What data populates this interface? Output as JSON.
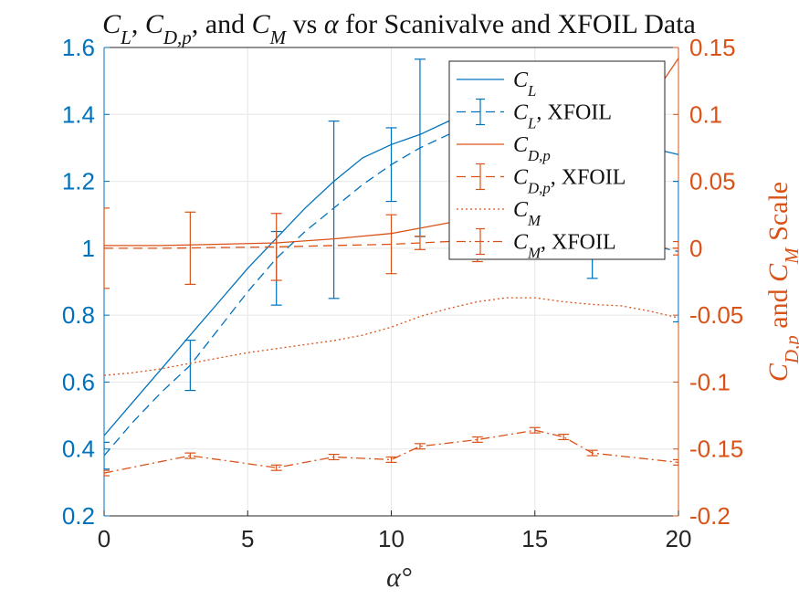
{
  "chart_data": {
    "type": "line",
    "title": "C_L, C_D,p, and C_M vs α for Scanivalve and XFOIL Data",
    "xlabel": "α°",
    "ylabel_left": "",
    "ylabel_right": "C_D,p and C_M Scale",
    "xlim": [
      0,
      20
    ],
    "ylim_left": [
      0.2,
      1.6
    ],
    "ylim_right": [
      -0.2,
      0.15
    ],
    "xticks": [
      "0",
      "5",
      "10",
      "15",
      "20"
    ],
    "yticks_left": [
      "0.2",
      "0.4",
      "0.6",
      "0.8",
      "1",
      "1.2",
      "1.4",
      "1.6"
    ],
    "yticks_right": [
      "-0.2",
      "-0.15",
      "-0.1",
      "-0.05",
      "0",
      "0.05",
      "0.1",
      "0.15"
    ],
    "grid": true,
    "legend_position": "top-right",
    "colors": {
      "left_axis": "#0072BD",
      "right_axis": "#D95319"
    },
    "series": [
      {
        "name": "C_L",
        "axis": "left",
        "style": "solid",
        "x": [
          0,
          1,
          2,
          3,
          4,
          5,
          6,
          7,
          8,
          9,
          10,
          11,
          12,
          13,
          14,
          15,
          16,
          17,
          18,
          19,
          20
        ],
        "y": [
          0.44,
          0.54,
          0.64,
          0.74,
          0.84,
          0.94,
          1.03,
          1.12,
          1.2,
          1.27,
          1.31,
          1.34,
          1.38,
          1.4,
          1.41,
          1.4,
          1.38,
          1.35,
          1.32,
          1.3,
          1.28
        ]
      },
      {
        "name": "C_L, XFOIL",
        "axis": "left",
        "style": "dashed",
        "errorbars": true,
        "x": [
          0,
          1,
          2,
          3,
          4,
          5,
          6,
          7,
          8,
          9,
          10,
          11,
          12,
          13,
          14,
          15,
          16,
          17,
          18,
          19,
          20
        ],
        "y": [
          0.38,
          0.48,
          0.57,
          0.65,
          0.76,
          0.87,
          0.97,
          1.05,
          1.12,
          1.19,
          1.25,
          1.3,
          1.34,
          1.35,
          1.34,
          1.3,
          1.2,
          1.1,
          1.04,
          1.01,
          0.99
        ],
        "err_x": [
          0,
          3,
          6,
          8,
          10,
          11,
          17,
          20
        ],
        "err_y": [
          0.38,
          0.65,
          0.94,
          1.115,
          1.25,
          1.3,
          1.1,
          0.99
        ],
        "err_half": [
          0.04,
          0.075,
          0.11,
          0.265,
          0.11,
          0.265,
          0.19,
          0.21
        ]
      },
      {
        "name": "C_D,p",
        "axis": "right",
        "style": "solid",
        "x": [
          0,
          2,
          4,
          6,
          8,
          10,
          11,
          12,
          13,
          14,
          15,
          16,
          17,
          18,
          19,
          20
        ],
        "y": [
          0.002,
          0.002,
          0.003,
          0.004,
          0.007,
          0.011,
          0.015,
          0.019,
          0.025,
          0.031,
          0.04,
          0.05,
          0.065,
          0.085,
          0.11,
          0.142
        ]
      },
      {
        "name": "C_D,p, XFOIL",
        "axis": "right",
        "style": "dashed",
        "errorbars": true,
        "x": [
          0,
          2,
          4,
          6,
          8,
          10,
          12,
          14,
          15,
          16,
          17,
          18,
          20
        ],
        "y": [
          0.0,
          0.0,
          0.0005,
          0.001,
          0.002,
          0.003,
          0.005,
          0.006,
          0.0,
          0.0,
          0.0,
          0.0,
          0.0
        ],
        "err_x": [
          0,
          3,
          6,
          10,
          11,
          13,
          15,
          16,
          20
        ],
        "err_y": [
          0.0,
          0.0,
          0.001,
          0.003,
          0.004,
          0.005,
          0.005,
          0.0,
          0.0
        ],
        "err_half": [
          0.03,
          0.027,
          0.025,
          0.022,
          0.005,
          0.015,
          0.012,
          0.008,
          0.005
        ]
      },
      {
        "name": "C_M",
        "axis": "right",
        "style": "dotted",
        "x": [
          0,
          1,
          2,
          3,
          4,
          5,
          6,
          7,
          8,
          9,
          10,
          11,
          12,
          13,
          14,
          15,
          16,
          17,
          18,
          19,
          20
        ],
        "y": [
          -0.095,
          -0.093,
          -0.09,
          -0.086,
          -0.082,
          -0.078,
          -0.075,
          -0.072,
          -0.069,
          -0.065,
          -0.059,
          -0.051,
          -0.045,
          -0.04,
          -0.037,
          -0.037,
          -0.04,
          -0.042,
          -0.043,
          -0.047,
          -0.052
        ]
      },
      {
        "name": "C_M, XFOIL",
        "axis": "right",
        "style": "dashdot",
        "errorbars": true,
        "x": [
          0,
          3,
          6,
          8,
          10,
          11,
          13,
          15,
          16,
          17,
          20
        ],
        "y": [
          -0.168,
          -0.155,
          -0.164,
          -0.156,
          -0.158,
          -0.148,
          -0.143,
          -0.136,
          -0.141,
          -0.153,
          -0.16
        ],
        "err_x": [
          0,
          3,
          6,
          8,
          10,
          11,
          13,
          15,
          16,
          17,
          20
        ],
        "err_y": [
          -0.168,
          -0.155,
          -0.164,
          -0.156,
          -0.158,
          -0.148,
          -0.143,
          -0.136,
          -0.141,
          -0.153,
          -0.16
        ],
        "err_half": [
          0.002,
          0.002,
          0.002,
          0.002,
          0.002,
          0.002,
          0.002,
          0.002,
          0.002,
          0.002,
          0.002
        ]
      }
    ]
  }
}
